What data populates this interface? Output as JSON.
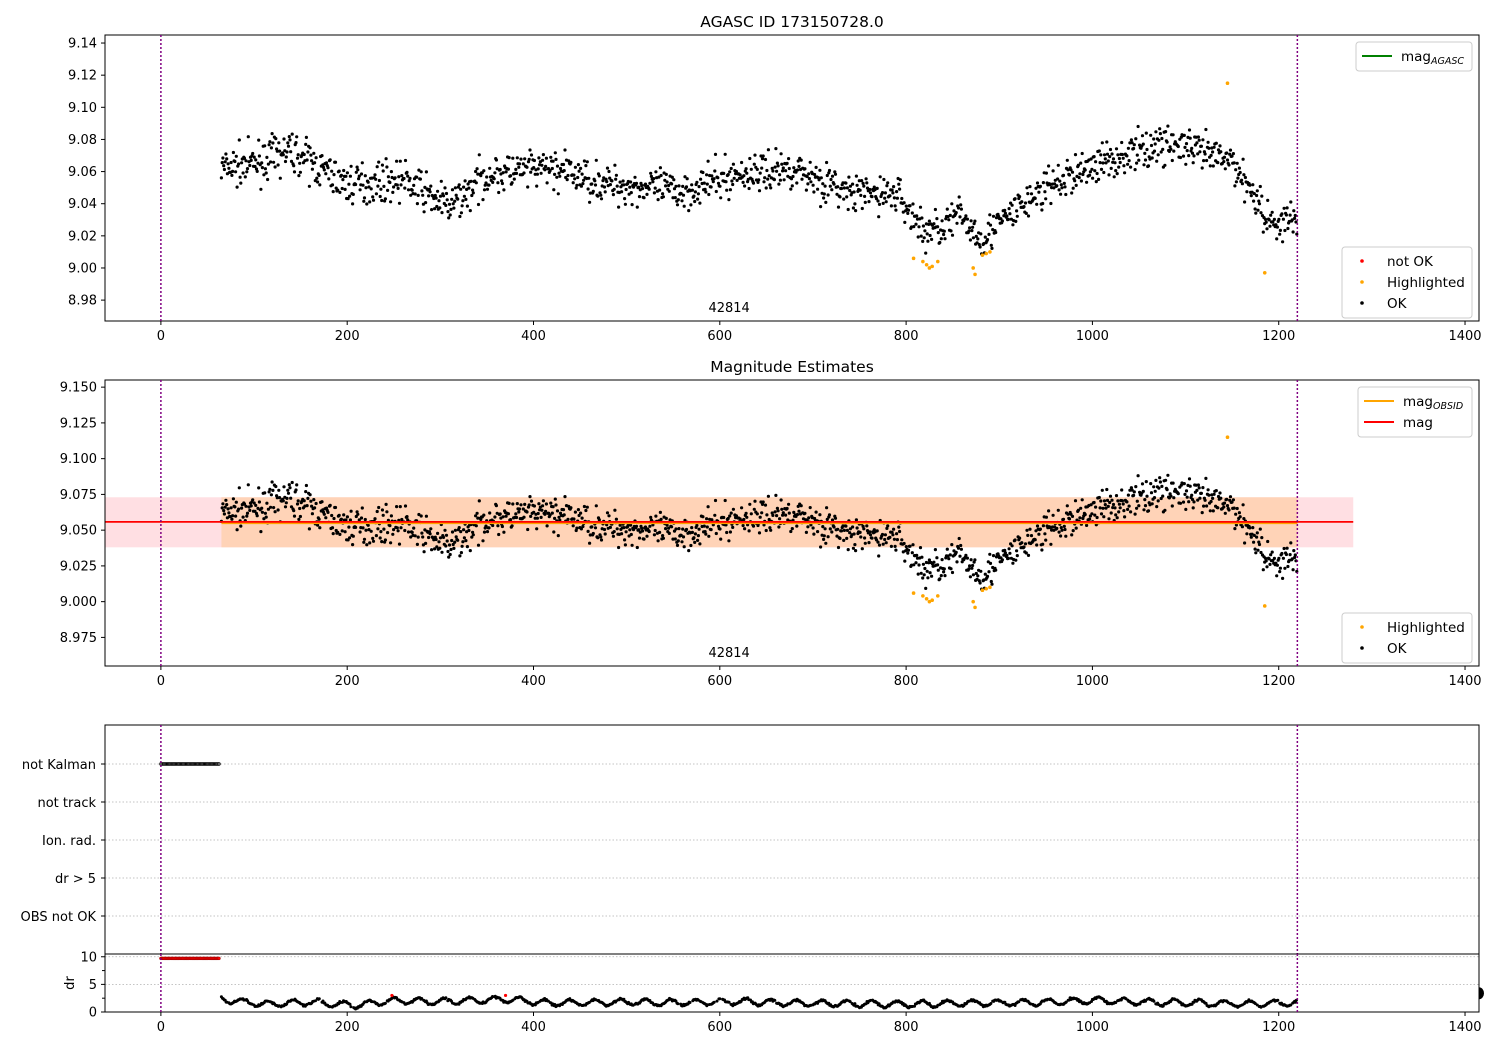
{
  "panels": {
    "top": {
      "title": "AGASC ID 173150728.0",
      "obsid_label": "42814",
      "x_ticks": [
        0,
        200,
        400,
        600,
        800,
        1000,
        1200,
        1400
      ],
      "y_ticks": [
        "8.98",
        "9.00",
        "9.02",
        "9.04",
        "9.06",
        "9.08",
        "9.10",
        "9.12",
        "9.14"
      ],
      "legend_upper": [
        {
          "kind": "line",
          "color": "#008000",
          "label": "mag",
          "sub": "AGASC"
        }
      ],
      "legend_lower": [
        {
          "kind": "marker",
          "color": "#ff0000",
          "label": "not OK"
        },
        {
          "kind": "marker",
          "color": "#ffa500",
          "label": "Highlighted"
        },
        {
          "kind": "marker",
          "color": "#000000",
          "label": "OK"
        }
      ]
    },
    "middle": {
      "title": "Magnitude Estimates",
      "obsid_label": "42814",
      "x_ticks": [
        0,
        200,
        400,
        600,
        800,
        1000,
        1200,
        1400
      ],
      "y_ticks": [
        "8.975",
        "9.000",
        "9.025",
        "9.050",
        "9.075",
        "9.100",
        "9.125",
        "9.150"
      ],
      "legend_upper": [
        {
          "kind": "line",
          "color": "#ffa500",
          "label": "mag",
          "sub": "OBSID"
        },
        {
          "kind": "line",
          "color": "#ff0000",
          "label": "mag",
          "sub": ""
        }
      ],
      "legend_lower": [
        {
          "kind": "marker",
          "color": "#ffa500",
          "label": "Highlighted"
        },
        {
          "kind": "marker",
          "color": "#000000",
          "label": "OK"
        }
      ]
    },
    "flags": {
      "labels": [
        "not Kalman",
        "not track",
        "Ion. rad.",
        "dr > 5",
        "OBS not OK"
      ]
    },
    "dr": {
      "ylabel": "dr",
      "y_ticks": [
        "0",
        "5",
        "10"
      ],
      "x_ticks": [
        0,
        200,
        400,
        600,
        800,
        1000,
        1200,
        1400
      ]
    }
  },
  "chart_data": {
    "type": "scatter",
    "x_range": [
      -60,
      1415
    ],
    "obsid_bounds": [
      0,
      1220
    ],
    "top_ylim": [
      8.967,
      9.145
    ],
    "middle_ylim": [
      8.955,
      9.155
    ],
    "dr_ylim": [
      0,
      10.5
    ],
    "mag_agasc": 9.056,
    "mag_obsid": 9.055,
    "mag_obsid_band": [
      9.038,
      9.073
    ],
    "mag": 9.0558,
    "mag_band": [
      9.038,
      9.073
    ],
    "not_kalman_x_range": [
      0,
      63
    ],
    "mag_series_x_range": [
      65,
      1220
    ],
    "mag_trend": [
      [
        65,
        9.062
      ],
      [
        100,
        9.065
      ],
      [
        140,
        9.073
      ],
      [
        200,
        9.052
      ],
      [
        260,
        9.055
      ],
      [
        310,
        9.038
      ],
      [
        350,
        9.058
      ],
      [
        420,
        9.062
      ],
      [
        480,
        9.052
      ],
      [
        560,
        9.048
      ],
      [
        620,
        9.058
      ],
      [
        680,
        9.062
      ],
      [
        740,
        9.046
      ],
      [
        790,
        9.046
      ],
      [
        820,
        9.022
      ],
      [
        860,
        9.032
      ],
      [
        880,
        9.018
      ],
      [
        940,
        9.046
      ],
      [
        1000,
        9.064
      ],
      [
        1080,
        9.078
      ],
      [
        1150,
        9.066
      ],
      [
        1175,
        9.045
      ],
      [
        1190,
        9.028
      ],
      [
        1220,
        9.03
      ]
    ],
    "highlighted": [
      [
        808,
        9.006
      ],
      [
        818,
        9.004
      ],
      [
        822,
        9.002
      ],
      [
        825,
        9.0
      ],
      [
        828,
        9.001
      ],
      [
        834,
        9.004
      ],
      [
        872,
        9.0
      ],
      [
        874,
        8.996
      ],
      [
        882,
        9.008
      ],
      [
        886,
        9.009
      ],
      [
        890,
        9.01
      ],
      [
        1145,
        9.115
      ],
      [
        1185,
        8.997
      ]
    ],
    "dr_trend": [
      [
        65,
        2.3
      ],
      [
        110,
        1.4
      ],
      [
        160,
        1.8
      ],
      [
        210,
        1.2
      ],
      [
        250,
        2.1
      ],
      [
        300,
        1.9
      ],
      [
        370,
        2.3
      ],
      [
        420,
        1.6
      ],
      [
        500,
        1.8
      ],
      [
        560,
        1.7
      ],
      [
        620,
        1.9
      ],
      [
        680,
        1.6
      ],
      [
        740,
        1.5
      ],
      [
        800,
        1.4
      ],
      [
        860,
        1.6
      ],
      [
        940,
        1.7
      ],
      [
        1000,
        2.1
      ],
      [
        1060,
        1.8
      ],
      [
        1120,
        1.6
      ],
      [
        1180,
        1.5
      ],
      [
        1220,
        1.7
      ]
    ]
  }
}
